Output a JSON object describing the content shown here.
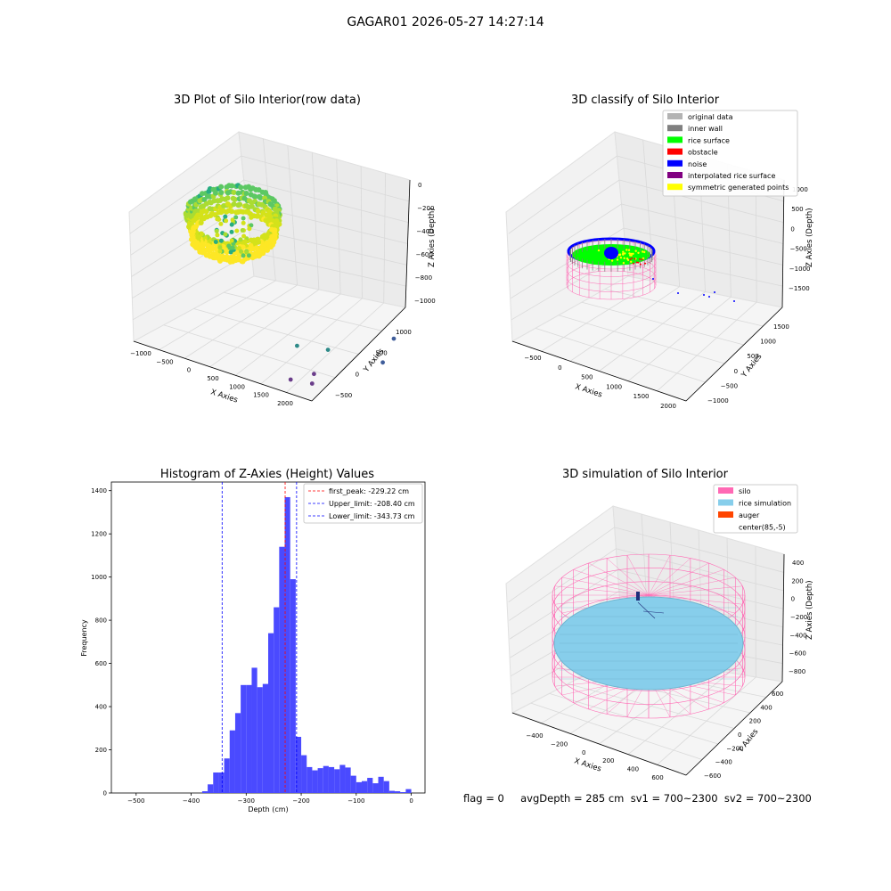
{
  "suptitle": "GAGAR01 2026-05-27 14:27:14",
  "status_text": "flag = 0     avgDepth = 285 cm  sv1 = 700~2300  sv2 = 700~2300",
  "colors": {
    "original": "#b3b3b3",
    "inner_wall": "#808080",
    "rice_surface": "#00ff00",
    "obstacle": "#ff0000",
    "noise": "#0000ff",
    "interpolated": "#800080",
    "symmetric": "#ffff00",
    "silo": "#ff69b4",
    "rice_sim": "#87ceeb",
    "auger": "#ff4500",
    "hist": "#4a4aff"
  },
  "chart_data": [
    {
      "type": "scatter",
      "title": "3D Plot of Silo Interior(row data)",
      "xlabel": "X Axies",
      "ylabel": "Y Axies",
      "zlabel": "Z Axies (Depth)",
      "x_ticks": [
        "−1000",
        "−500",
        "0",
        "500",
        "1000",
        "1500",
        "2000"
      ],
      "y_ticks": [
        "−500",
        "0",
        "500",
        "1000"
      ],
      "z_ticks": [
        "0",
        "−200",
        "−400",
        "−600",
        "−800",
        "−1000"
      ],
      "colormap": "viridis",
      "outlier_points": [
        {
          "x": 2100,
          "y": 400,
          "z": -950
        },
        {
          "x": 1800,
          "y": 800,
          "z": -920
        },
        {
          "x": 1300,
          "y": 300,
          "z": -880
        },
        {
          "x": 1550,
          "y": -100,
          "z": -1000
        },
        {
          "x": 1700,
          "y": -250,
          "z": -1010
        },
        {
          "x": 1400,
          "y": -300,
          "z": -1000
        },
        {
          "x": 900,
          "y": 200,
          "z": -850
        }
      ]
    },
    {
      "type": "scatter",
      "title": "3D classify of Silo Interior",
      "xlabel": "X Axies",
      "ylabel": "Y Axies",
      "zlabel": "Z Axies (Depth)",
      "x_ticks": [
        "−500",
        "0",
        "500",
        "1000",
        "1500",
        "2000"
      ],
      "y_ticks": [
        "−1000",
        "−500",
        "0",
        "500",
        "1000",
        "1500"
      ],
      "z_ticks": [
        "1000",
        "500",
        "0",
        "−500",
        "−1000",
        "−1500"
      ],
      "legend": [
        "original data",
        "inner wall",
        "rice surface",
        "obstacle",
        "noise",
        "interpolated rice surface",
        "symmetric generated points"
      ],
      "legend_loc": "top-right"
    },
    {
      "type": "bar",
      "title": "Histogram of Z-Axies (Height) Values",
      "xlabel": "Depth (cm)",
      "ylabel": "Frequency",
      "xlim": [
        -545,
        25
      ],
      "ylim": [
        0,
        1440
      ],
      "x_ticks": [
        -500,
        -400,
        -300,
        -200,
        -100,
        0
      ],
      "y_ticks": [
        0,
        200,
        400,
        600,
        800,
        1000,
        1200,
        1400
      ],
      "bin_width": 10,
      "bins": [
        {
          "x": -375,
          "v": 8
        },
        {
          "x": -365,
          "v": 40
        },
        {
          "x": -355,
          "v": 95
        },
        {
          "x": -345,
          "v": 95
        },
        {
          "x": -335,
          "v": 160
        },
        {
          "x": -325,
          "v": 290
        },
        {
          "x": -315,
          "v": 370
        },
        {
          "x": -305,
          "v": 500
        },
        {
          "x": -295,
          "v": 500
        },
        {
          "x": -285,
          "v": 580
        },
        {
          "x": -275,
          "v": 490
        },
        {
          "x": -265,
          "v": 505
        },
        {
          "x": -255,
          "v": 740
        },
        {
          "x": -245,
          "v": 860
        },
        {
          "x": -235,
          "v": 1140
        },
        {
          "x": -225,
          "v": 1370
        },
        {
          "x": -215,
          "v": 990
        },
        {
          "x": -205,
          "v": 260
        },
        {
          "x": -195,
          "v": 175
        },
        {
          "x": -185,
          "v": 120
        },
        {
          "x": -175,
          "v": 105
        },
        {
          "x": -165,
          "v": 115
        },
        {
          "x": -155,
          "v": 125
        },
        {
          "x": -145,
          "v": 120
        },
        {
          "x": -135,
          "v": 110
        },
        {
          "x": -125,
          "v": 130
        },
        {
          "x": -115,
          "v": 118
        },
        {
          "x": -105,
          "v": 80
        },
        {
          "x": -95,
          "v": 50
        },
        {
          "x": -85,
          "v": 55
        },
        {
          "x": -75,
          "v": 70
        },
        {
          "x": -65,
          "v": 45
        },
        {
          "x": -55,
          "v": 75
        },
        {
          "x": -45,
          "v": 55
        },
        {
          "x": -35,
          "v": 10
        },
        {
          "x": -25,
          "v": 8
        },
        {
          "x": -15,
          "v": 4
        },
        {
          "x": -5,
          "v": 18
        }
      ],
      "lines": [
        {
          "x": -229.22,
          "color": "#ff0000",
          "label": "first_peak: -229.22 cm"
        },
        {
          "x": -208.4,
          "color": "#0000ff",
          "label": "Upper_limit: -208.40 cm"
        },
        {
          "x": -343.73,
          "color": "#0000ff",
          "label": "Lower_limit: -343.73 cm"
        }
      ]
    },
    {
      "type": "scatter",
      "title": "3D simulation of Silo Interior",
      "xlabel": "X Axies",
      "ylabel": "Y Axies",
      "zlabel": "Z Axies (Depth)",
      "x_ticks": [
        "−400",
        "−200",
        "0",
        "200",
        "400",
        "600"
      ],
      "y_ticks": [
        "−600",
        "−400",
        "−200",
        "0",
        "200",
        "400",
        "600"
      ],
      "z_ticks": [
        "400",
        "200",
        "0",
        "−200",
        "−400",
        "−600",
        "−800"
      ],
      "legend": [
        "silo",
        "rice simulation",
        "auger",
        "center(85,-5)"
      ],
      "legend_loc": "top-right"
    }
  ]
}
